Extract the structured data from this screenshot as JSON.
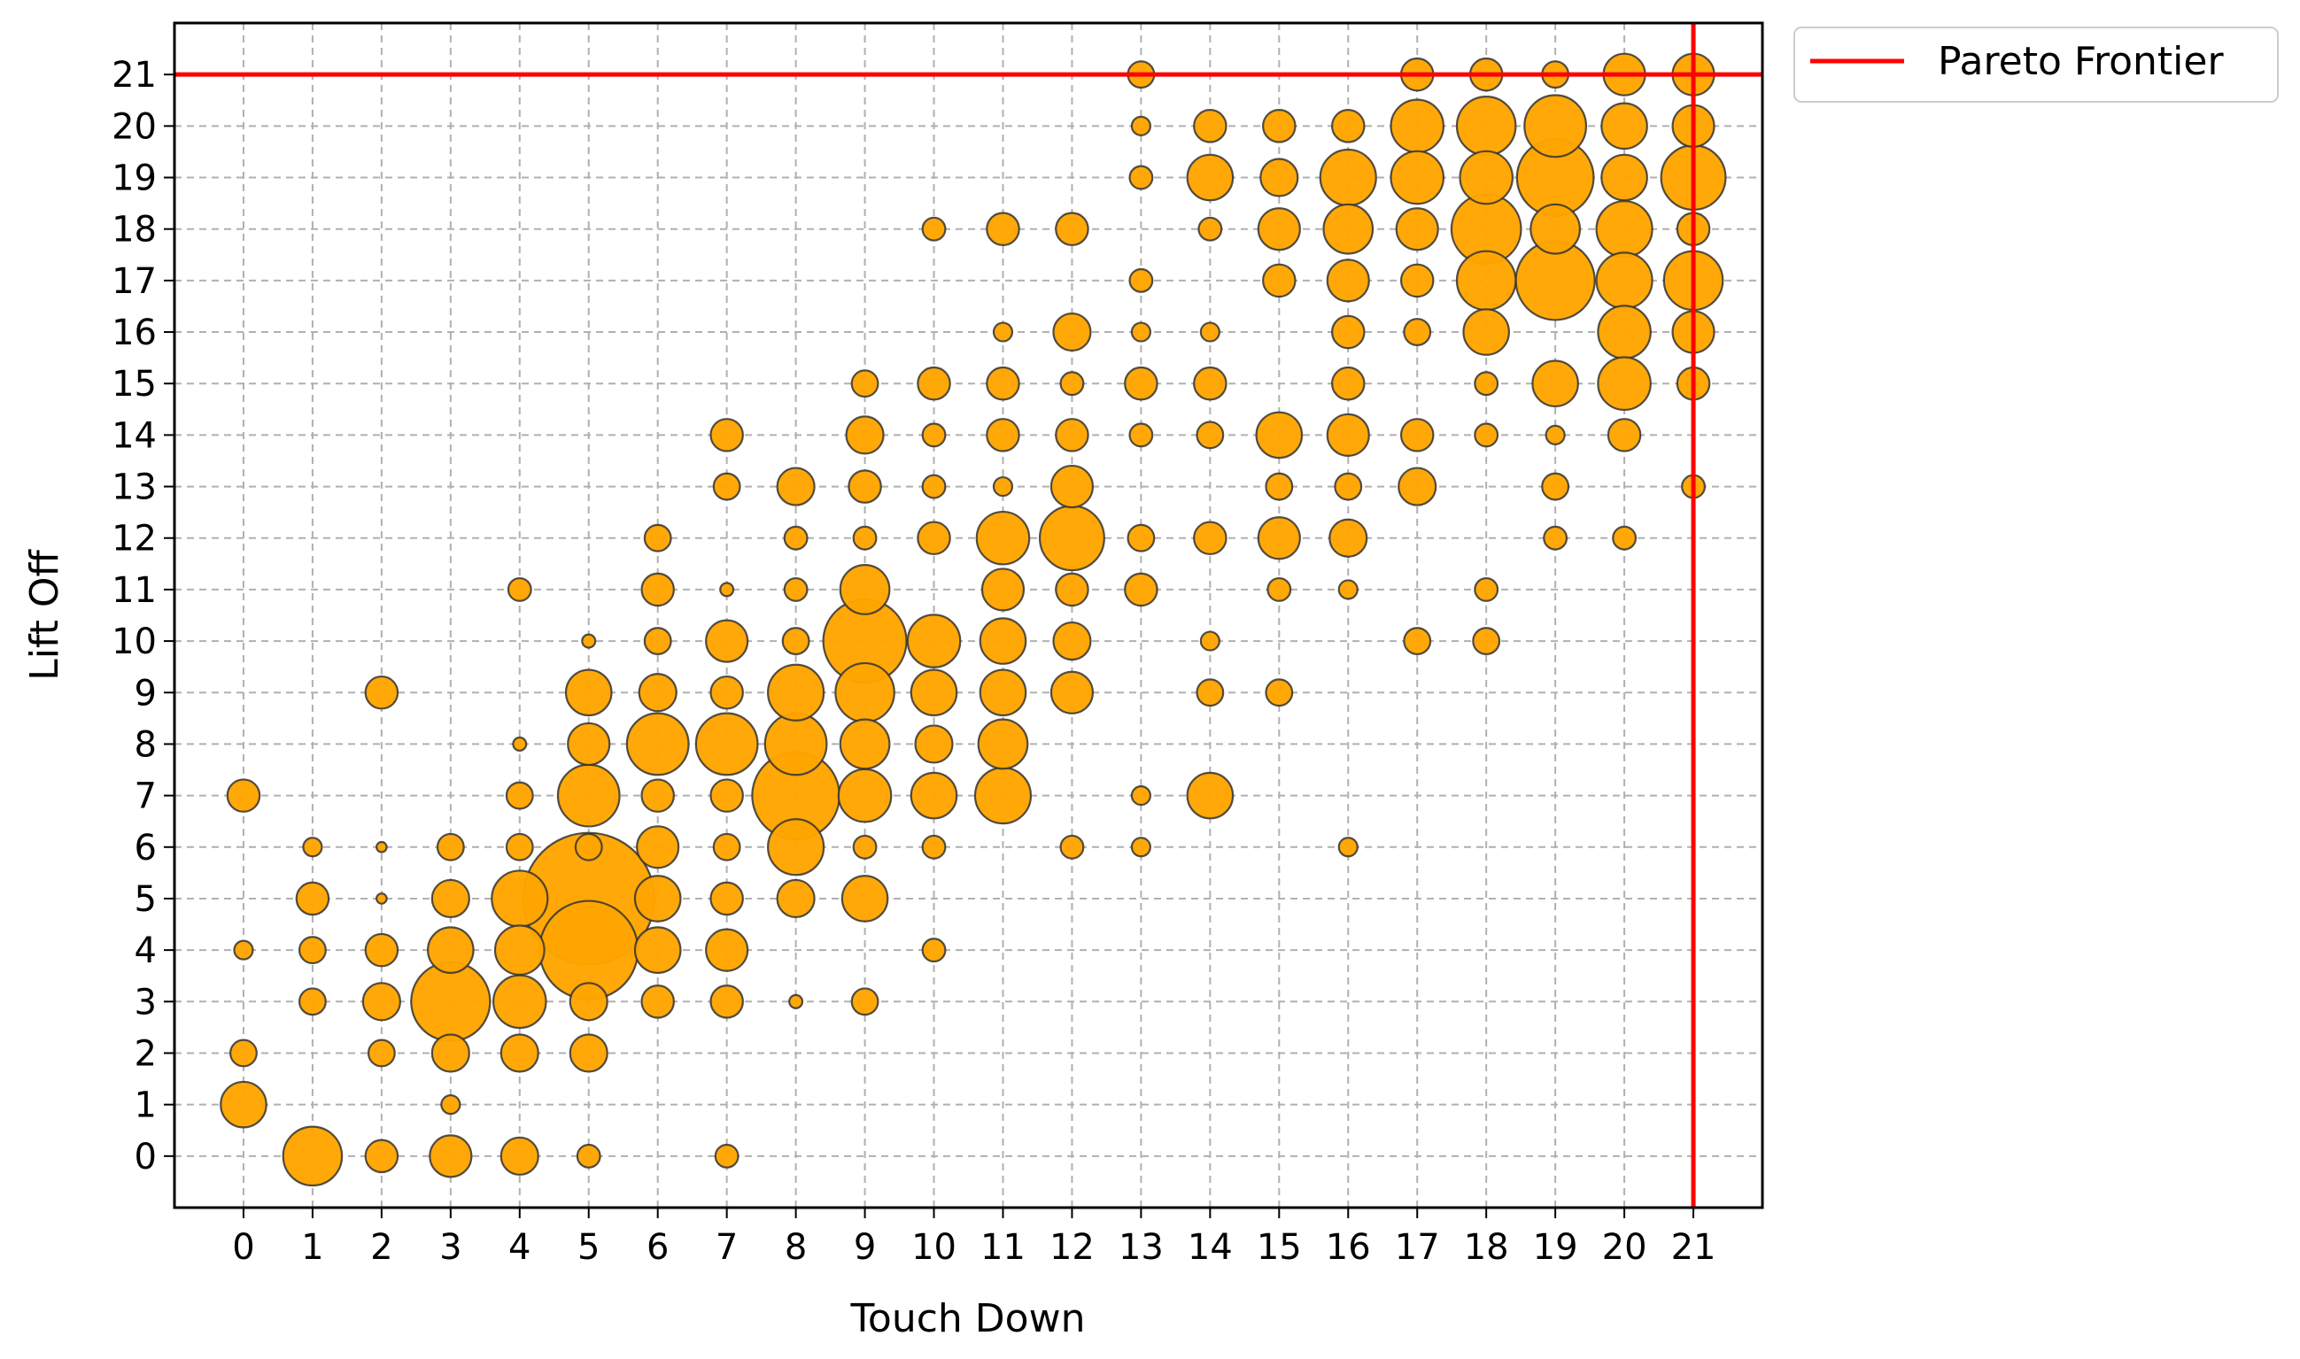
{
  "chart_data": {
    "type": "scatter",
    "xlabel": "Touch Down",
    "ylabel": "Lift Off",
    "xlim": [
      -1,
      22
    ],
    "ylim": [
      -1,
      22
    ],
    "xticks": [
      "0",
      "1",
      "2",
      "3",
      "4",
      "5",
      "6",
      "7",
      "8",
      "9",
      "10",
      "11",
      "12",
      "13",
      "14",
      "15",
      "16",
      "17",
      "18",
      "19",
      "20",
      "21"
    ],
    "yticks": [
      "0",
      "1",
      "2",
      "3",
      "4",
      "5",
      "6",
      "7",
      "8",
      "9",
      "10",
      "11",
      "12",
      "13",
      "14",
      "15",
      "16",
      "17",
      "18",
      "19",
      "20",
      "21"
    ],
    "grid": true,
    "legend": {
      "position": "outside-top-right",
      "entries": [
        {
          "label": "Pareto Frontier",
          "color": "#ff0000"
        }
      ]
    },
    "pareto_frontier": {
      "x": 21,
      "y": 21
    },
    "marker_color": "#ffa500",
    "marker_edge_color": "#333333",
    "points": [
      [
        0,
        7,
        3
      ],
      [
        0,
        4,
        1
      ],
      [
        0,
        2,
        2
      ],
      [
        0,
        1,
        6
      ],
      [
        1,
        6,
        1
      ],
      [
        1,
        5,
        3
      ],
      [
        1,
        4,
        2
      ],
      [
        1,
        3,
        2
      ],
      [
        1,
        0,
        10
      ],
      [
        2,
        9,
        3
      ],
      [
        2,
        6,
        0.3
      ],
      [
        2,
        5,
        0.3
      ],
      [
        2,
        4,
        3
      ],
      [
        2,
        3,
        4
      ],
      [
        2,
        2,
        2
      ],
      [
        2,
        0,
        3
      ],
      [
        3,
        6,
        2
      ],
      [
        3,
        5,
        4
      ],
      [
        3,
        4,
        6
      ],
      [
        3,
        3,
        18
      ],
      [
        3,
        2,
        4
      ],
      [
        3,
        1,
        1
      ],
      [
        3,
        0,
        5
      ],
      [
        4,
        11,
        1.5
      ],
      [
        4,
        8,
        0.5
      ],
      [
        4,
        7,
        2
      ],
      [
        4,
        6,
        2
      ],
      [
        4,
        5,
        9
      ],
      [
        4,
        4,
        7
      ],
      [
        4,
        3,
        8
      ],
      [
        4,
        2,
        4
      ],
      [
        4,
        0,
        4
      ],
      [
        5,
        10,
        0.5
      ],
      [
        5,
        9,
        6
      ],
      [
        5,
        8,
        5
      ],
      [
        5,
        7,
        11
      ],
      [
        5,
        6,
        2
      ],
      [
        5,
        5,
        50
      ],
      [
        5,
        4,
        28
      ],
      [
        5,
        3,
        4
      ],
      [
        5,
        2,
        4
      ],
      [
        5,
        0,
        1.5
      ],
      [
        6,
        12,
        2
      ],
      [
        6,
        11,
        3
      ],
      [
        6,
        10,
        2
      ],
      [
        6,
        9,
        4
      ],
      [
        6,
        8,
        11
      ],
      [
        6,
        7,
        3
      ],
      [
        6,
        6,
        5
      ],
      [
        6,
        5,
        6
      ],
      [
        6,
        4,
        6
      ],
      [
        6,
        3,
        3
      ],
      [
        7,
        14,
        3
      ],
      [
        7,
        13,
        2
      ],
      [
        7,
        11,
        0.5
      ],
      [
        7,
        10,
        5
      ],
      [
        7,
        9,
        3
      ],
      [
        7,
        8,
        11
      ],
      [
        7,
        7,
        3
      ],
      [
        7,
        6,
        2
      ],
      [
        7,
        5,
        3
      ],
      [
        7,
        4,
        5
      ],
      [
        7,
        3,
        3
      ],
      [
        7,
        0,
        1.5
      ],
      [
        8,
        13,
        4
      ],
      [
        8,
        12,
        1.5
      ],
      [
        8,
        11,
        1.5
      ],
      [
        8,
        10,
        2
      ],
      [
        8,
        9,
        9
      ],
      [
        8,
        8,
        11
      ],
      [
        8,
        7,
        22
      ],
      [
        8,
        6,
        9
      ],
      [
        8,
        5,
        4
      ],
      [
        8,
        3,
        0.5
      ],
      [
        9,
        15,
        2
      ],
      [
        9,
        14,
        4
      ],
      [
        9,
        13,
        3
      ],
      [
        9,
        12,
        1.5
      ],
      [
        9,
        11,
        7
      ],
      [
        9,
        10,
        20
      ],
      [
        9,
        9,
        10
      ],
      [
        9,
        8,
        7
      ],
      [
        9,
        7,
        8
      ],
      [
        9,
        6,
        1.5
      ],
      [
        9,
        5,
        6
      ],
      [
        9,
        3,
        2
      ],
      [
        10,
        18,
        1.5
      ],
      [
        10,
        15,
        3
      ],
      [
        10,
        14,
        1.5
      ],
      [
        10,
        13,
        1.5
      ],
      [
        10,
        12,
        3
      ],
      [
        10,
        10,
        8
      ],
      [
        10,
        9,
        6
      ],
      [
        10,
        8,
        4
      ],
      [
        10,
        7,
        6
      ],
      [
        10,
        6,
        1.5
      ],
      [
        10,
        4,
        1.5
      ],
      [
        11,
        18,
        3
      ],
      [
        11,
        16,
        1
      ],
      [
        11,
        15,
        3
      ],
      [
        11,
        14,
        3
      ],
      [
        11,
        13,
        1
      ],
      [
        11,
        12,
        8
      ],
      [
        11,
        11,
        5
      ],
      [
        11,
        10,
        6
      ],
      [
        11,
        9,
        6
      ],
      [
        11,
        8,
        7
      ],
      [
        11,
        7,
        9
      ],
      [
        12,
        18,
        3
      ],
      [
        12,
        16,
        4
      ],
      [
        12,
        15,
        1.5
      ],
      [
        12,
        14,
        3
      ],
      [
        12,
        13,
        5
      ],
      [
        12,
        12,
        12
      ],
      [
        12,
        11,
        3
      ],
      [
        12,
        10,
        4
      ],
      [
        12,
        9,
        5
      ],
      [
        12,
        6,
        1.5
      ],
      [
        13,
        21,
        2
      ],
      [
        13,
        20,
        1
      ],
      [
        13,
        19,
        1.5
      ],
      [
        13,
        17,
        1.5
      ],
      [
        13,
        16,
        1
      ],
      [
        13,
        15,
        3
      ],
      [
        13,
        14,
        1.5
      ],
      [
        13,
        12,
        2
      ],
      [
        13,
        11,
        3
      ],
      [
        13,
        7,
        1
      ],
      [
        13,
        6,
        1
      ],
      [
        14,
        20,
        3
      ],
      [
        14,
        19,
        6
      ],
      [
        14,
        18,
        1.5
      ],
      [
        14,
        16,
        1
      ],
      [
        14,
        15,
        3
      ],
      [
        14,
        14,
        2
      ],
      [
        14,
        12,
        3
      ],
      [
        14,
        10,
        1
      ],
      [
        14,
        9,
        2
      ],
      [
        14,
        7,
        6
      ],
      [
        15,
        20,
        3
      ],
      [
        15,
        19,
        4
      ],
      [
        15,
        18,
        5
      ],
      [
        15,
        17,
        3
      ],
      [
        15,
        14,
        6
      ],
      [
        15,
        13,
        2
      ],
      [
        15,
        12,
        5
      ],
      [
        15,
        11,
        1.5
      ],
      [
        15,
        9,
        2
      ],
      [
        16,
        20,
        3
      ],
      [
        16,
        19,
        9
      ],
      [
        16,
        18,
        7
      ],
      [
        16,
        17,
        5
      ],
      [
        16,
        16,
        3
      ],
      [
        16,
        15,
        3
      ],
      [
        16,
        14,
        5
      ],
      [
        16,
        13,
        2
      ],
      [
        16,
        12,
        4
      ],
      [
        16,
        11,
        1
      ],
      [
        16,
        6,
        1
      ],
      [
        17,
        21,
        3
      ],
      [
        17,
        20,
        8
      ],
      [
        17,
        19,
        8
      ],
      [
        17,
        18,
        5
      ],
      [
        17,
        17,
        3
      ],
      [
        17,
        16,
        2
      ],
      [
        17,
        14,
        3
      ],
      [
        17,
        13,
        4
      ],
      [
        17,
        10,
        2
      ],
      [
        18,
        21,
        3
      ],
      [
        18,
        20,
        10
      ],
      [
        18,
        19,
        8
      ],
      [
        18,
        18,
        14
      ],
      [
        18,
        17,
        10
      ],
      [
        18,
        16,
        6
      ],
      [
        18,
        15,
        1.5
      ],
      [
        18,
        14,
        1.5
      ],
      [
        18,
        11,
        1.5
      ],
      [
        18,
        10,
        2
      ],
      [
        19,
        21,
        2
      ],
      [
        19,
        20,
        11
      ],
      [
        19,
        19,
        17
      ],
      [
        19,
        18,
        7
      ],
      [
        19,
        17,
        18
      ],
      [
        19,
        15,
        6
      ],
      [
        19,
        14,
        1
      ],
      [
        19,
        13,
        2
      ],
      [
        19,
        12,
        1.5
      ],
      [
        20,
        21,
        5
      ],
      [
        20,
        20,
        6
      ],
      [
        20,
        19,
        6
      ],
      [
        20,
        18,
        9
      ],
      [
        20,
        17,
        9
      ],
      [
        20,
        16,
        8
      ],
      [
        20,
        15,
        8
      ],
      [
        20,
        14,
        3
      ],
      [
        20,
        12,
        1.5
      ],
      [
        21,
        21,
        5
      ],
      [
        21,
        20,
        5
      ],
      [
        21,
        19,
        12
      ],
      [
        21,
        18,
        3
      ],
      [
        21,
        17,
        10
      ],
      [
        21,
        16,
        5
      ],
      [
        21,
        15,
        3
      ],
      [
        21,
        13,
        1.5
      ]
    ]
  }
}
